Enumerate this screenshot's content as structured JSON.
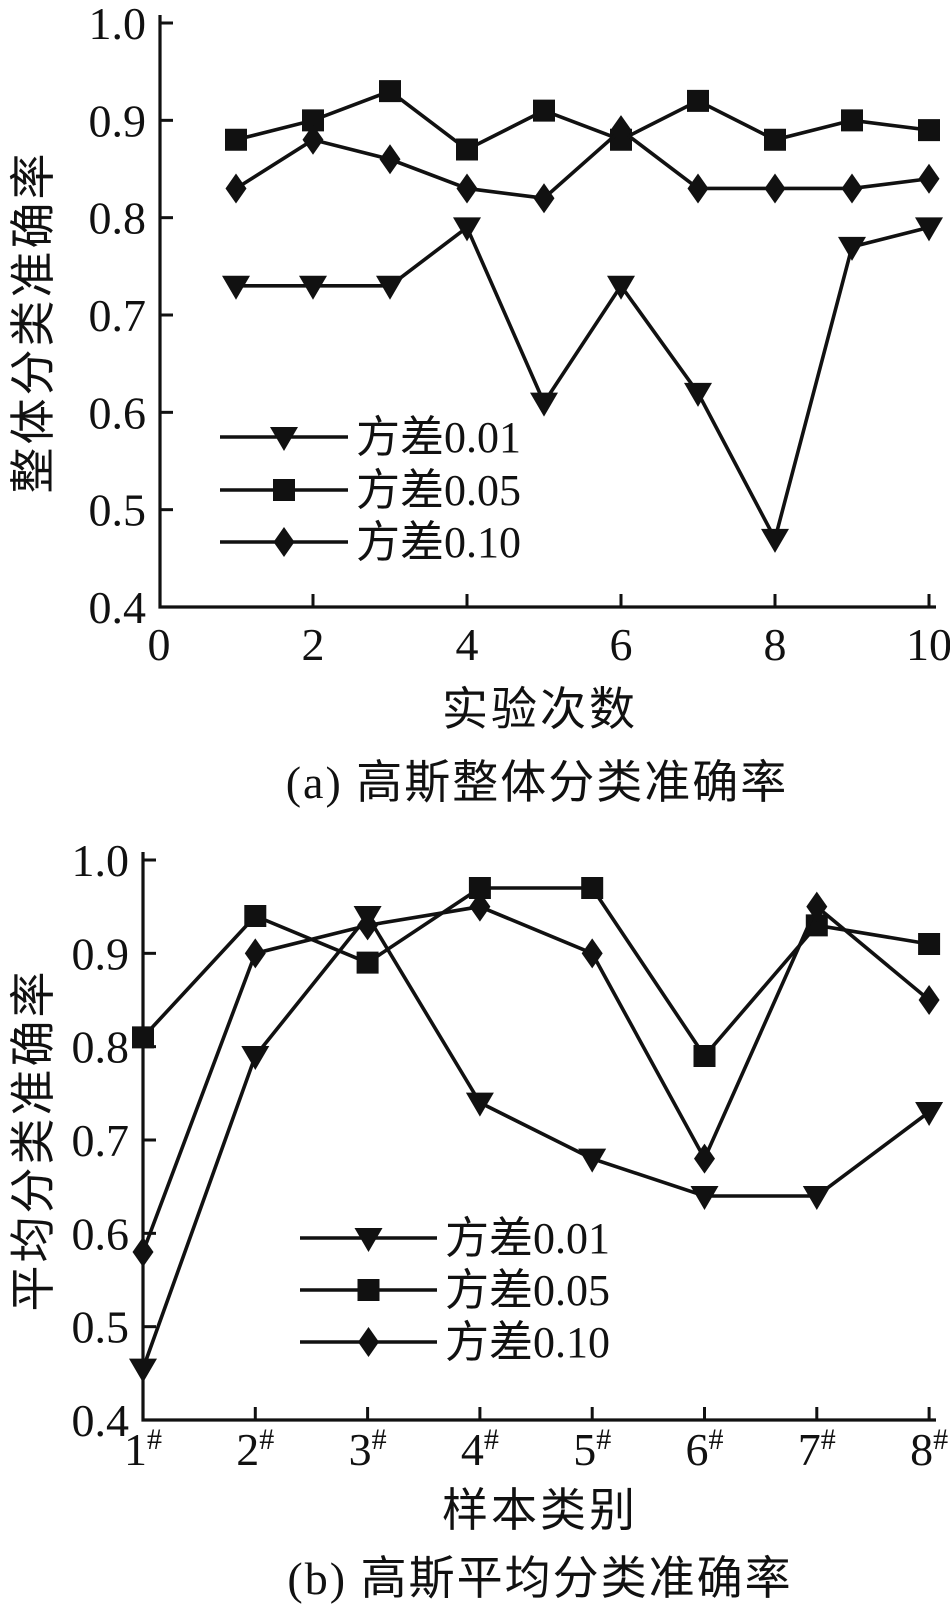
{
  "figure": {
    "ink_color": "#111111",
    "background_color": "#ffffff"
  },
  "chart_data": [
    {
      "type": "line",
      "panel": "a",
      "title": "(a) 高斯整体分类准确率",
      "xlabel": "实验次数",
      "ylabel": "整体分类准确率",
      "x": [
        1,
        2,
        3,
        4,
        5,
        6,
        7,
        8,
        9,
        10
      ],
      "xlim": [
        0,
        10
      ],
      "ylim": [
        0.4,
        1.0
      ],
      "xticks": [
        0,
        2,
        4,
        6,
        8,
        10
      ],
      "ytick_labels": [
        "1.0",
        "0.9",
        "0.8",
        "0.7",
        "0.6",
        "0.5",
        "0.4"
      ],
      "grid": false,
      "legend_position": "inside-lower-left",
      "series": [
        {
          "name": "方差0.01",
          "marker": "triangle-down",
          "values": [
            0.73,
            0.73,
            0.73,
            0.79,
            0.61,
            0.73,
            0.62,
            0.47,
            0.77,
            0.79
          ]
        },
        {
          "name": "方差0.05",
          "marker": "square",
          "values": [
            0.88,
            0.9,
            0.93,
            0.87,
            0.91,
            0.88,
            0.92,
            0.88,
            0.9,
            0.89
          ]
        },
        {
          "name": "方差0.10",
          "marker": "diamond",
          "values": [
            0.83,
            0.88,
            0.86,
            0.83,
            0.82,
            0.89,
            0.83,
            0.83,
            0.83,
            0.84
          ]
        }
      ]
    },
    {
      "type": "line",
      "panel": "b",
      "title": "(b) 高斯平均分类准确率",
      "xlabel": "样本类别",
      "ylabel": "平均分类准确率",
      "categories": [
        "1",
        "2",
        "3",
        "4",
        "5",
        "6",
        "7",
        "8"
      ],
      "category_suffix": "#",
      "ylim": [
        0.4,
        1.0
      ],
      "ytick_labels": [
        "1.0",
        "0.9",
        "0.8",
        "0.7",
        "0.6",
        "0.5",
        "0.4"
      ],
      "grid": false,
      "legend_position": "inside-lower-middle",
      "series": [
        {
          "name": "方差0.01",
          "marker": "triangle-down",
          "values": [
            0.455,
            0.79,
            0.94,
            0.74,
            0.68,
            0.64,
            0.64,
            0.73
          ]
        },
        {
          "name": "方差0.05",
          "marker": "square",
          "values": [
            0.81,
            0.94,
            0.89,
            0.97,
            0.97,
            0.79,
            0.93,
            0.91
          ]
        },
        {
          "name": "方差0.10",
          "marker": "diamond",
          "values": [
            0.58,
            0.9,
            0.93,
            0.95,
            0.9,
            0.68,
            0.95,
            0.85
          ]
        }
      ]
    }
  ]
}
